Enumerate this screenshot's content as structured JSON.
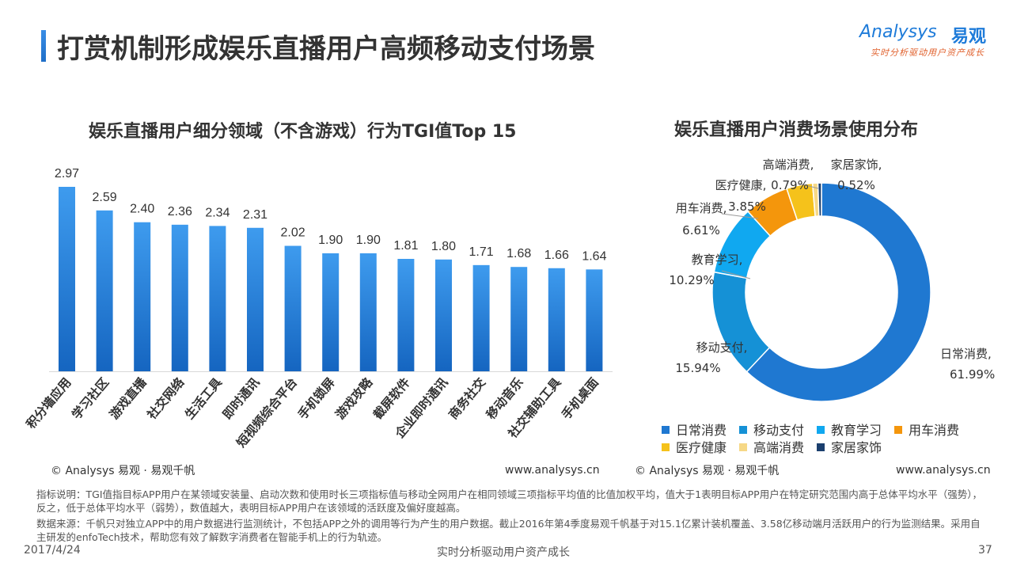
{
  "header": {
    "title": "打赏机制形成娱乐直播用户高频移动支付场景",
    "logo_text": "Analysys",
    "logo_cn": "易观",
    "logo_slogan": "实时分析驱动用户资产成长"
  },
  "colors": {
    "bar_top": "#3e9bee",
    "bar_bottom": "#1565c0",
    "accent": "#1e7bd9"
  },
  "chart_data": [
    {
      "type": "bar",
      "title": "娱乐直播用户细分领域（不含游戏）行为TGI值Top 15",
      "categories": [
        "积分墙应用",
        "学习社区",
        "游戏直播",
        "社交网络",
        "生活工具",
        "即时通讯",
        "短视频综合平台",
        "手机锁屏",
        "游戏攻略",
        "截屏软件",
        "企业即时通讯",
        "商务社交",
        "移动音乐",
        "社交辅助工具",
        "手机桌面"
      ],
      "values": [
        2.97,
        2.59,
        2.4,
        2.36,
        2.34,
        2.31,
        2.02,
        1.9,
        1.9,
        1.81,
        1.8,
        1.71,
        1.68,
        1.66,
        1.64
      ],
      "value_labels": [
        "2.97",
        "2.59",
        "2.40",
        "2.36",
        "2.34",
        "2.31",
        "2.02",
        "1.90",
        "1.90",
        "1.81",
        "1.80",
        "1.71",
        "1.68",
        "1.66",
        "1.64"
      ],
      "ylim": [
        0,
        3.2
      ],
      "grid": false
    },
    {
      "type": "pie",
      "title": "娱乐直播用户消费场景使用分布",
      "donut": true,
      "categories": [
        "日常消费",
        "移动支付",
        "教育学习",
        "用车消费",
        "医疗健康",
        "高端消费",
        "家居家饰"
      ],
      "values": [
        61.99,
        15.94,
        10.29,
        6.61,
        3.85,
        0.79,
        0.52
      ],
      "labels": [
        {
          "name": "日常消费,",
          "pct": "61.99%"
        },
        {
          "name": "移动支付,",
          "pct": "15.94%"
        },
        {
          "name": "教育学习,",
          "pct": "10.29%"
        },
        {
          "name": "用车消费,",
          "pct": "6.61%"
        },
        {
          "name": "医疗健康,",
          "pct": "3.85%"
        },
        {
          "name": "高端消费,",
          "pct": "0.79%"
        },
        {
          "name": "家居家饰,",
          "pct": "0.52%"
        }
      ],
      "colors": [
        "#1f78d1",
        "#1591d6",
        "#10a8f0",
        "#f4960c",
        "#f5c21b",
        "#f6d886",
        "#1b3f6e"
      ],
      "legend_position": "bottom"
    }
  ],
  "sources": {
    "left": "© Analysys 易观 · 易观千帆",
    "left_url": "www.analysys.cn",
    "right": "© Analysys 易观 · 易观千帆",
    "right_url": "www.analysys.cn"
  },
  "notes": {
    "indicator": "指标说明：TGI值指目标APP用户在某领域安装量、启动次数和使用时长三项指标值与移动全网用户在相同领域三项指标平均值的比值加权平均，值大于1表明目标APP用户在特定研究范围内高于总体平均水平（强势），反之，低于总体平均水平（弱势），数值越大，表明目标APP用户在该领域的活跃度及偏好度越高。",
    "data_source": "数据来源：千帆只对独立APP中的用户数据进行监测统计，不包括APP之外的调用等行为产生的用户数据。截止2016年第4季度易观千帆基于对15.1亿累计装机覆盖、3.58亿移动端月活跃用户的行为监测结果。采用自主研发的enfoTech技术，帮助您有效了解数字消费者在智能手机上的行为轨迹。"
  },
  "footer": {
    "date": "2017/4/24",
    "slogan": "实时分析驱动用户资产成长",
    "page": "37"
  }
}
